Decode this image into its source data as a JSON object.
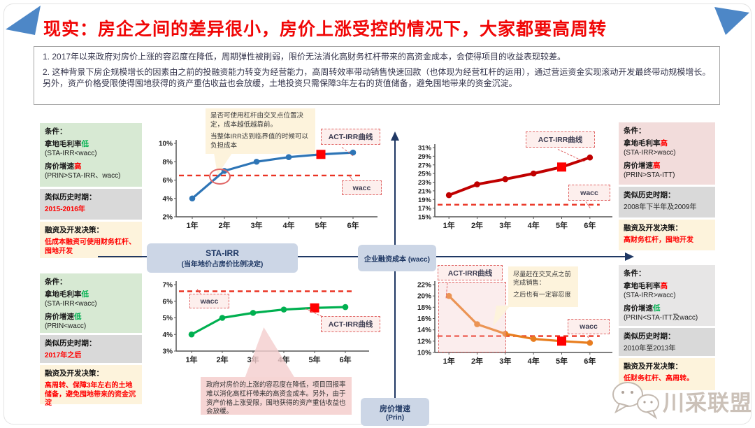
{
  "title": "现实：房企之间的差异很小，房价上涨受控的情况下，大家都要高周转",
  "intro": {
    "p1": "1. 2017年以来政府对房价上涨的容忍度在降低，周期弹性被削弱，限价无法消化高财务杠杆带来的高资金成本，会使得项目的收益表现较差。",
    "p2": "2. 这种背景下房企规模增长的因素由之前的投融资能力转变为经营能力，高周转效率带动销售快速回款（也体现为经营杠杆的运用），通过营运资金实现滚动开发最终带动规模增长。另外，资产价格受限使得囤地获得的资产重估收益也会放缓，土地投资只需保障3年左右的货值储备，避免囤地带来的资金沉淀。"
  },
  "axes": {
    "sta_line1": "STA-IRR",
    "sta_line2": "(当年地价占房价比例决定)",
    "wacc_box": "企业融资成本 (wacc)",
    "prin_line1": "房价增速",
    "prin_line2": "(Prin)"
  },
  "panels": {
    "top_left": {
      "cond_title": "条件：",
      "margin_label": "拿地毛利率",
      "margin_value": "低",
      "margin_formula": "(STA-IRR<wacc)",
      "price_label": "房价增速",
      "price_value": "高",
      "price_formula": "(PRIN>STA-IRR、wacc)",
      "hist_title": "类似历史时期：",
      "hist_value": "2015-2016年",
      "dec_title": "融资及开发决策：",
      "dec_value": "低成本融资可使用财务杠杆、囤地开发"
    },
    "top_right": {
      "cond_title": "条件：",
      "margin_label": "拿地毛利率",
      "margin_value": "高",
      "margin_formula": "(STA-IRR>wacc)",
      "price_label": "房价增速",
      "price_value": "高",
      "price_formula": "(PRIN>STA-ITT)",
      "hist_title": "类似历史时期：",
      "hist_value": "2008年下半年及2009年",
      "dec_title": "融资及开发决策：",
      "dec_value": "高财务杠杆，囤地开发"
    },
    "bottom_left": {
      "cond_title": "条件：",
      "margin_label": "拿地毛利率",
      "margin_value": "低",
      "margin_formula": "(STA-IRR<wacc)",
      "price_label": "房价增速",
      "price_value": "低",
      "price_formula": "(PRIN<wacc)",
      "hist_title": "类似历史时期：",
      "hist_value": "2017年之后",
      "dec_title": "融资及开发决策：",
      "dec_value": "高周转、保障3年左右的土地储备，避免囤地带来的资金沉淀"
    },
    "bottom_right": {
      "cond_title": "条件：",
      "margin_label": "拿地毛利率",
      "margin_value": "高",
      "margin_formula": "(STA-IRR>wacc)",
      "price_label": "房价增速",
      "price_value": "低",
      "price_formula": "(PRIN<STA-ITT及wacc)",
      "hist_title": "类似历史时期：",
      "hist_value": "2010年至2013年",
      "dec_title": "融资及开发决策：",
      "dec_value": "低财务杠杆、高周转。"
    }
  },
  "annotations": {
    "tl_note_1": "是否可使用杠杆由交叉点位置决定，成本越低越靠前。",
    "tl_note_2": "当整体IRR达到临界值的时候可以负担成本",
    "bl_note": "政府对房价的上涨的容忍度在降低，项目回报率难以消化高杠杆带来的高资金成本。另外，由于资产价格上涨受限，囤地获得的资产重估收益也会放缓。",
    "br_note_1": "尽量赶在交叉点之前完成销售：",
    "br_note_2": "之后也有一定容忍度"
  },
  "colors": {
    "title_red": "#f00606",
    "highlight_red": "#ff0000",
    "highlight_green": "#00b050",
    "wacc_dash": "#ea3323",
    "axis_navy": "#1f3864"
  },
  "watermark": {
    "text": "川采联盟"
  },
  "chart_data": [
    {
      "position": "top-left",
      "type": "line",
      "categories": [
        "1年",
        "2年",
        "3年",
        "4年",
        "5年",
        "6年"
      ],
      "values": [
        4,
        7,
        8,
        8.5,
        8.8,
        9
      ],
      "unit": "%",
      "ylim": [
        2,
        10
      ],
      "ytick_step": 2,
      "wacc_line": 6.5,
      "line_color": "#2e75b6",
      "line_width": 3.2,
      "square_marker_index": 4,
      "labels": {
        "line": "ACT-IRR曲线",
        "wacc": "wacc"
      }
    },
    {
      "position": "top-right",
      "type": "line",
      "categories": [
        "1年",
        "2年",
        "3年",
        "4年",
        "5年",
        "6年"
      ],
      "values": [
        20,
        22.5,
        23.7,
        25,
        26.5,
        28.7
      ],
      "unit": "%",
      "ylim": [
        15,
        31
      ],
      "ytick_step": 2,
      "wacc_line": 17.8,
      "line_color": "#c00000",
      "line_width": 4,
      "square_marker_index": 4,
      "labels": {
        "line": "ACT-IRR曲线",
        "wacc": "wacc"
      }
    },
    {
      "position": "bottom-left",
      "type": "line",
      "categories": [
        "1年",
        "2年",
        "3年",
        "4年",
        "5年",
        "6年"
      ],
      "values": [
        4,
        5,
        5.3,
        5.5,
        5.6,
        5.65
      ],
      "unit": "%",
      "ylim": [
        3,
        7
      ],
      "ytick_step": 1,
      "wacc_line": 6.6,
      "line_color": "#00b050",
      "line_width": 3.2,
      "square_marker_index": 4,
      "labels": {
        "line": "ACT-IRR曲线",
        "wacc": "wacc"
      }
    },
    {
      "position": "bottom-right",
      "type": "line",
      "categories": [
        "1年",
        "2年",
        "3年",
        "4年",
        "5年",
        "6年"
      ],
      "values": [
        20,
        15,
        13.3,
        12.4,
        12,
        11.7
      ],
      "unit": "%",
      "ylim": [
        10,
        22
      ],
      "ytick_step": 2,
      "wacc_line": 12.9,
      "line_color": "#e87d1e",
      "line_width": 3.2,
      "square_marker_index": 4,
      "labels": {
        "line": "ACT-IRR曲线",
        "wacc": "wacc"
      }
    }
  ]
}
